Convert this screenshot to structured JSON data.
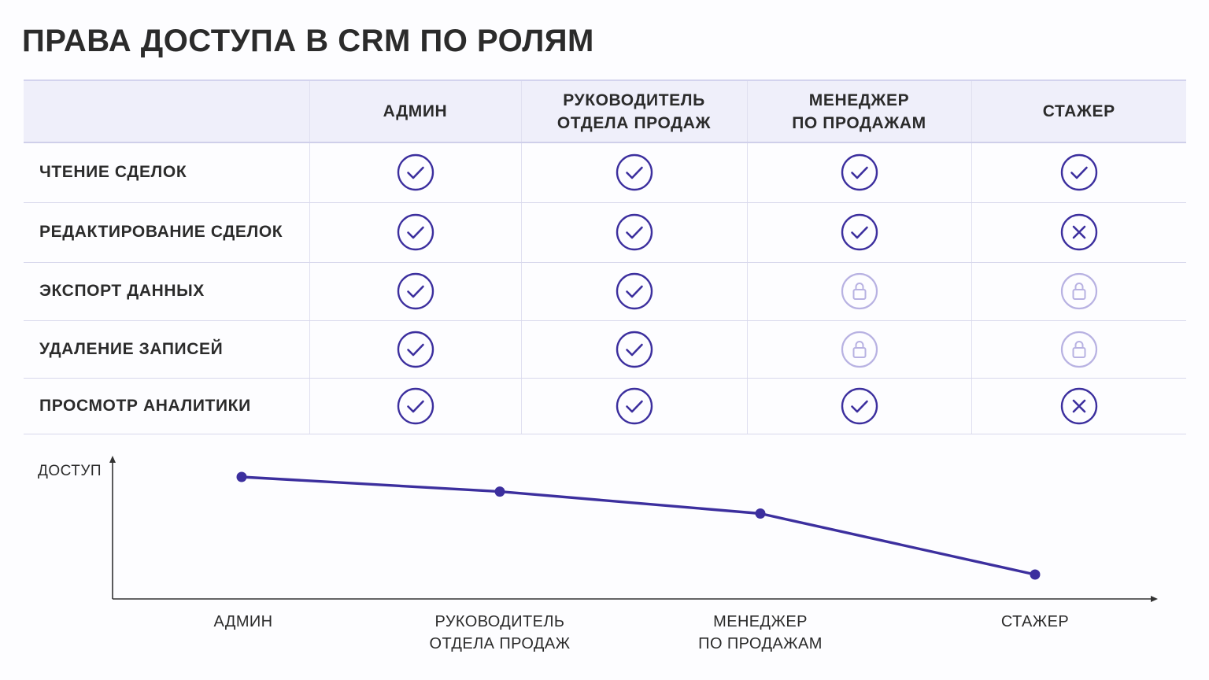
{
  "title": "ПРАВА ДОСТУПА В CRM ПО РОЛЯМ",
  "colors": {
    "accent": "#3c2f9e",
    "locked": "#b8b2e2",
    "header_bg": "#efeffa",
    "grid_line": "#d8d8ec",
    "text": "#2b2b2b"
  },
  "table": {
    "corner": "",
    "roles": [
      [
        "АДМИН"
      ],
      [
        "РУКОВОДИТЕЛЬ",
        "ОТДЕЛА ПРОДАЖ"
      ],
      [
        "МЕНЕДЖЕР",
        "ПО ПРОДАЖАМ"
      ],
      [
        "СТАЖЕР"
      ]
    ],
    "rows": [
      {
        "label": "ЧТЕНИЕ СДЕЛОК",
        "cells": [
          "check",
          "check",
          "check",
          "check"
        ]
      },
      {
        "label": "РЕДАКТИРОВАНИЕ СДЕЛОК",
        "cells": [
          "check",
          "check",
          "check",
          "cross"
        ]
      },
      {
        "label": "ЭКСПОРТ ДАННЫХ",
        "cells": [
          "check",
          "check",
          "lock",
          "lock"
        ]
      },
      {
        "label": "УДАЛЕНИЕ ЗАПИСЕЙ",
        "cells": [
          "check",
          "check",
          "lock",
          "lock"
        ]
      },
      {
        "label": "ПРОСМОТР АНАЛИТИКИ",
        "cells": [
          "check",
          "check",
          "check",
          "cross"
        ]
      }
    ]
  },
  "chart_data": {
    "type": "line",
    "title": "",
    "xlabel": "",
    "ylabel": "ДОСТУП",
    "categories": [
      [
        "АДМИН"
      ],
      [
        "РУКОВОДИТЕЛЬ",
        "ОТДЕЛА ПРОДАЖ"
      ],
      [
        "МЕНЕДЖЕР",
        "ПО ПРОДАЖАМ"
      ],
      [
        "СТАЖЕР"
      ]
    ],
    "series": [
      {
        "values": [
          5,
          4.4,
          3.5,
          1
        ]
      }
    ],
    "ylim": [
      0,
      6
    ],
    "grid": false,
    "legend": "none"
  }
}
